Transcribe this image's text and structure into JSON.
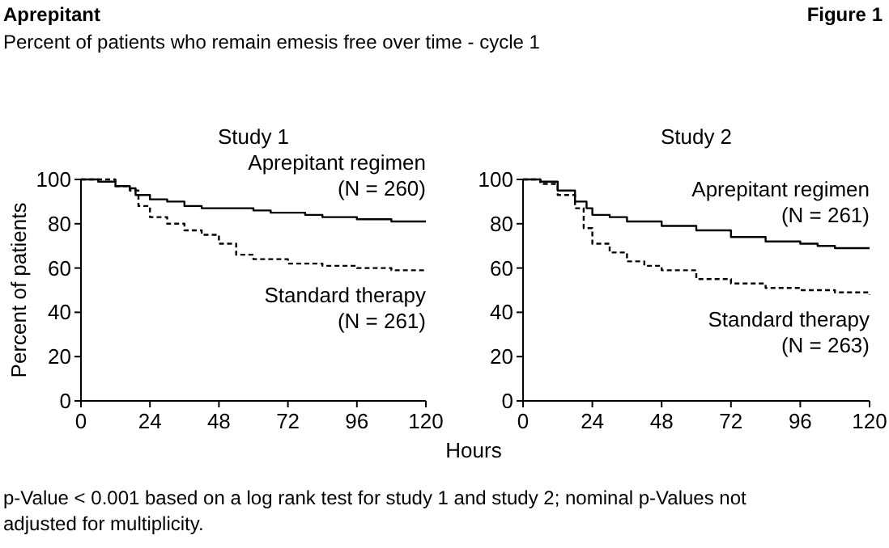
{
  "chart_data": [
    {
      "type": "step",
      "title": "Study 1",
      "xlabel": "Hours",
      "ylabel": "Percent of patients",
      "xlim": [
        0,
        120
      ],
      "xticks": [
        0,
        24,
        48,
        72,
        96,
        120
      ],
      "ylim": [
        0,
        100
      ],
      "yticks": [
        0,
        20,
        40,
        60,
        80,
        100
      ],
      "annotations": [
        "Aprepitant",
        "Figure 1",
        "Percent of patients who remain emesis free over time - cycle 1",
        "p-Value < 0.001 based on a log rank test for study 1 and study 2; nominal p-Values not adjusted for multiplicity."
      ],
      "series": [
        {
          "name": "Aprepitant regimen (N = 260)",
          "color": "#000000",
          "line_style": "solid",
          "x": [
            0,
            6,
            12,
            17,
            19,
            24,
            30,
            36,
            42,
            54,
            60,
            66,
            78,
            84,
            96,
            108,
            120
          ],
          "values": [
            100,
            99,
            97,
            96,
            93,
            91,
            90,
            88,
            87,
            87,
            86,
            85,
            84,
            83,
            82,
            81,
            81
          ]
        },
        {
          "name": "Standard therapy (N = 261)",
          "color": "#000000",
          "line_style": "dashed",
          "x": [
            0,
            12,
            17,
            20,
            24,
            30,
            36,
            42,
            48,
            54,
            60,
            72,
            84,
            96,
            108,
            120
          ],
          "values": [
            100,
            97,
            95,
            88,
            83,
            80,
            77,
            75,
            71,
            66,
            64,
            62,
            61,
            60,
            59,
            59
          ]
        }
      ]
    },
    {
      "type": "step",
      "title": "Study 2",
      "xlim": [
        0,
        120
      ],
      "xticks": [
        0,
        24,
        48,
        72,
        96,
        120
      ],
      "ylim": [
        0,
        100
      ],
      "yticks": [
        0,
        20,
        40,
        60,
        80,
        100
      ],
      "series": [
        {
          "name": "Aprepitant regimen (N = 261)",
          "color": "#000000",
          "line_style": "solid",
          "x": [
            0,
            6,
            12,
            18,
            22,
            24,
            30,
            36,
            42,
            48,
            60,
            72,
            84,
            96,
            102,
            108,
            120
          ],
          "values": [
            100,
            99,
            95,
            90,
            87,
            84,
            83,
            81,
            81,
            79,
            77,
            74,
            72,
            71,
            70,
            69,
            69
          ]
        },
        {
          "name": "Standard therapy (N = 263)",
          "color": "#000000",
          "line_style": "dashed",
          "x": [
            0,
            6,
            12,
            18,
            21,
            24,
            30,
            36,
            42,
            48,
            60,
            72,
            84,
            96,
            108,
            120
          ],
          "values": [
            100,
            98,
            93,
            87,
            78,
            71,
            67,
            63,
            61,
            59,
            55,
            53,
            51,
            50,
            49,
            48
          ]
        }
      ]
    }
  ]
}
